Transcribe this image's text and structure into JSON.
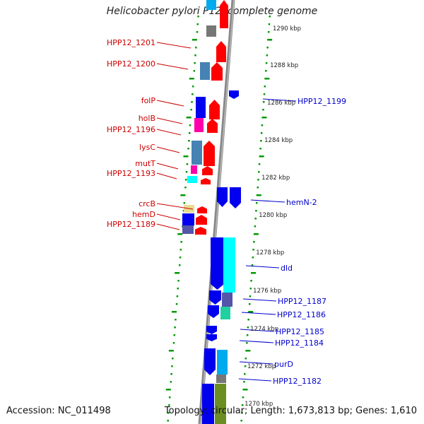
{
  "title": "Helicobacter pylori P12, complete genome",
  "footer": {
    "accession": "Accession: NC_011498",
    "topology": "Topology: circular; Length: 1,673,813 bp; Genes: 1,610"
  },
  "colors": {
    "left_label": "#cc0000",
    "right_label": "#0000cc",
    "tick": "#009900",
    "backbone": "#888888",
    "gene_red": "#ff0000",
    "gene_blue": "#0000ee",
    "gene_cyan": "#00ffff",
    "gene_steel": "#4682b4",
    "gene_grey": "#777777",
    "gene_magenta": "#ff00aa",
    "gene_yellow": "#e8dc90",
    "gene_slate": "#5555aa",
    "gene_teal": "#20d0a0",
    "gene_olive": "#6b8e23",
    "gene_lightblue": "#00aaee"
  },
  "scale_labels": [
    "1290 kbp",
    "1288 kbp",
    "1286 kbp",
    "1284 kbp",
    "1282 kbp",
    "1280 kbp",
    "1278 kbp",
    "1276 kbp",
    "1274 kbp",
    "1272 kbp",
    "1270 kbp"
  ],
  "left_genes": [
    "HPP12_1201",
    "HPP12_1200",
    "folP",
    "holB",
    "HPP12_1196",
    "lysC",
    "mutT",
    "HPP12_1193",
    "crcB",
    "hemD",
    "HPP12_1189"
  ],
  "right_genes": [
    "HPP12_1199",
    "hemN-2",
    "dld",
    "HPP12_1187",
    "HPP12_1186",
    "HPP12_1185",
    "HPP12_1184",
    "purD",
    "HPP12_1182"
  ]
}
